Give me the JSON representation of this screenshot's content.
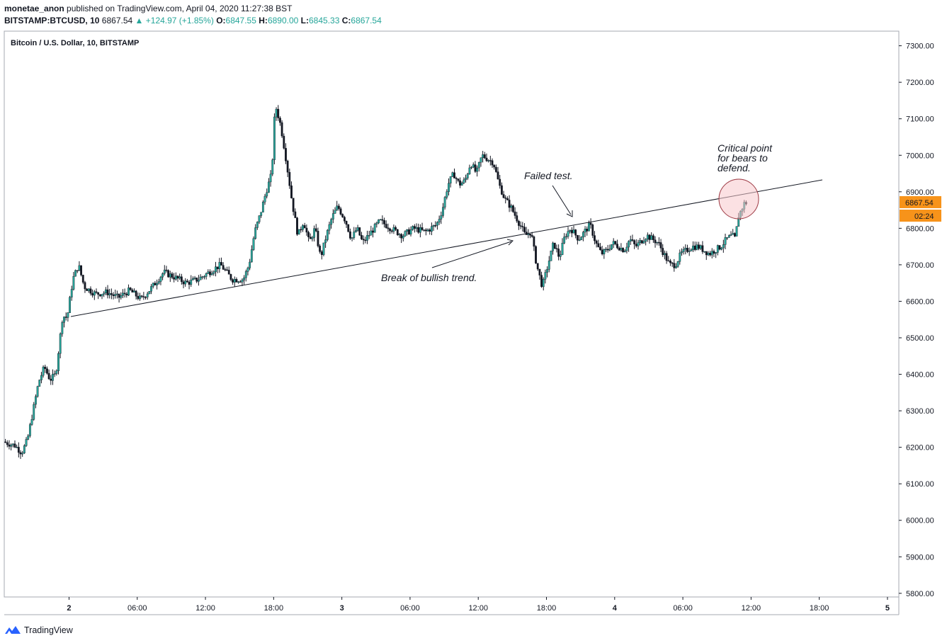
{
  "header": {
    "author": "monetae_anon",
    "published_text": "published on TradingView.com, April 04, 2020 11:27:38 BST",
    "symbol": "BITSTAMP:BTCUSD, 10",
    "last": "6867.54",
    "change": "+124.97 (+1.85%)",
    "o_label": "O:",
    "o_value": "6847.55",
    "h_label": "H:",
    "h_value": "6890.00",
    "l_label": "L:",
    "l_value": "6845.33",
    "c_label": "C:",
    "c_value": "6867.54"
  },
  "footer": {
    "brand": "TradingView"
  },
  "chart_data": {
    "type": "candlestick",
    "title": "Bitcoin / U.S. Dollar, 10, BITSTAMP",
    "ylim": [
      5790,
      7340
    ],
    "y_ticks": [
      "7300.00",
      "7200.00",
      "7100.00",
      "7000.00",
      "6900.00",
      "6800.00",
      "6700.00",
      "6600.00",
      "6500.00",
      "6400.00",
      "6300.00",
      "6200.00",
      "6100.00",
      "6000.00",
      "5900.00",
      "5800.00"
    ],
    "x_ticks": [
      "2",
      "06:00",
      "12:00",
      "18:00",
      "3",
      "06:00",
      "12:00",
      "18:00",
      "4",
      "06:00",
      "12:00",
      "18:00",
      "5"
    ],
    "x_tick_hours": [
      24,
      30,
      36,
      42,
      48,
      54,
      60,
      66,
      72,
      78,
      84,
      90,
      96
    ],
    "xlim_hours": [
      18.3,
      97
    ],
    "last_price": "6867.54",
    "countdown": "02:24",
    "colors": {
      "up": "#26a69a",
      "down": "#131722",
      "wick": "#131722",
      "price_tag": "#f7931a"
    },
    "price_path": [
      [
        18.4,
        6215
      ],
      [
        19.4,
        6205
      ],
      [
        20.0,
        6185
      ],
      [
        20.5,
        6220
      ],
      [
        21.0,
        6300
      ],
      [
        21.5,
        6380
      ],
      [
        22.0,
        6420
      ],
      [
        22.5,
        6385
      ],
      [
        23.0,
        6400
      ],
      [
        23.3,
        6480
      ],
      [
        23.6,
        6560
      ],
      [
        24.0,
        6555
      ],
      [
        24.5,
        6660
      ],
      [
        25.0,
        6700
      ],
      [
        25.5,
        6640
      ],
      [
        26.5,
        6620
      ],
      [
        27.5,
        6625
      ],
      [
        28.5,
        6610
      ],
      [
        29.5,
        6630
      ],
      [
        30.5,
        6605
      ],
      [
        31.5,
        6640
      ],
      [
        32.5,
        6680
      ],
      [
        33.5,
        6665
      ],
      [
        34.5,
        6650
      ],
      [
        35.5,
        6660
      ],
      [
        36.5,
        6680
      ],
      [
        37.5,
        6700
      ],
      [
        38.5,
        6660
      ],
      [
        39.5,
        6660
      ],
      [
        40.0,
        6700
      ],
      [
        40.5,
        6790
      ],
      [
        41.0,
        6840
      ],
      [
        41.5,
        6900
      ],
      [
        42.0,
        6950
      ],
      [
        42.3,
        7140
      ],
      [
        42.8,
        7080
      ],
      [
        43.3,
        6980
      ],
      [
        43.8,
        6870
      ],
      [
        44.3,
        6780
      ],
      [
        44.8,
        6820
      ],
      [
        45.3,
        6760
      ],
      [
        45.8,
        6800
      ],
      [
        46.3,
        6720
      ],
      [
        46.8,
        6780
      ],
      [
        47.3,
        6830
      ],
      [
        47.8,
        6860
      ],
      [
        48.5,
        6820
      ],
      [
        49.0,
        6770
      ],
      [
        49.5,
        6800
      ],
      [
        50.0,
        6760
      ],
      [
        50.5,
        6780
      ],
      [
        51.0,
        6800
      ],
      [
        51.5,
        6820
      ],
      [
        52.5,
        6800
      ],
      [
        53.5,
        6780
      ],
      [
        54.5,
        6800
      ],
      [
        55.5,
        6790
      ],
      [
        56.5,
        6810
      ],
      [
        57.0,
        6850
      ],
      [
        57.5,
        6920
      ],
      [
        58.0,
        6950
      ],
      [
        58.5,
        6920
      ],
      [
        59.0,
        6930
      ],
      [
        59.5,
        6980
      ],
      [
        60.0,
        6950
      ],
      [
        60.5,
        7000
      ],
      [
        61.0,
        6990
      ],
      [
        61.5,
        6980
      ],
      [
        62.0,
        6920
      ],
      [
        62.5,
        6880
      ],
      [
        63.0,
        6860
      ],
      [
        63.5,
        6830
      ],
      [
        64.0,
        6800
      ],
      [
        64.3,
        6780
      ],
      [
        64.8,
        6790
      ],
      [
        65.3,
        6700
      ],
      [
        65.8,
        6640
      ],
      [
        66.3,
        6700
      ],
      [
        66.8,
        6760
      ],
      [
        67.3,
        6720
      ],
      [
        67.8,
        6780
      ],
      [
        68.3,
        6800
      ],
      [
        69.0,
        6770
      ],
      [
        69.5,
        6790
      ],
      [
        70.0,
        6810
      ],
      [
        70.5,
        6760
      ],
      [
        71.0,
        6730
      ],
      [
        71.5,
        6740
      ],
      [
        72.0,
        6760
      ],
      [
        73.0,
        6740
      ],
      [
        73.5,
        6770
      ],
      [
        74.0,
        6750
      ],
      [
        75.0,
        6780
      ],
      [
        76.0,
        6760
      ],
      [
        76.5,
        6730
      ],
      [
        77.0,
        6700
      ],
      [
        77.5,
        6700
      ],
      [
        78.0,
        6730
      ],
      [
        78.5,
        6740
      ],
      [
        79.0,
        6750
      ],
      [
        79.5,
        6750
      ],
      [
        80.0,
        6740
      ],
      [
        80.5,
        6730
      ],
      [
        81.0,
        6740
      ],
      [
        81.5,
        6750
      ],
      [
        82.0,
        6770
      ],
      [
        82.5,
        6780
      ],
      [
        82.8,
        6770
      ],
      [
        83.0,
        6830
      ],
      [
        83.3,
        6850
      ],
      [
        83.6,
        6870
      ]
    ],
    "annotations": [
      {
        "text": "Break of bullish trend."
      },
      {
        "text": "Failed test."
      },
      {
        "lines": [
          "Critical point",
          "for bears to",
          "defend."
        ]
      }
    ]
  }
}
